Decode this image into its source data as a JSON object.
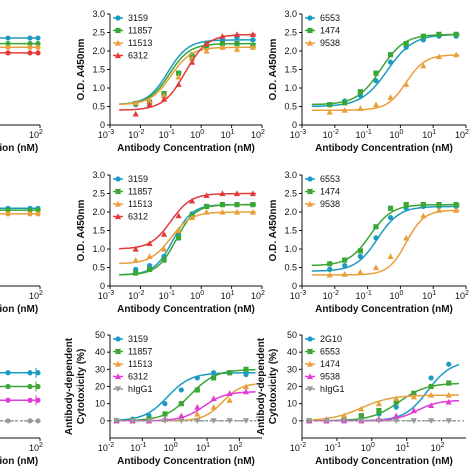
{
  "chart_data": [
    {
      "type": "scatter",
      "panel": "top-left (cropped)",
      "xlabel": "Antibody Concentration (nM)",
      "ylabel": "",
      "xscale": "log",
      "xlim": [
        0.001,
        100
      ],
      "ylim": [
        0,
        3.0
      ],
      "xtick_labels": [
        "10",
        "10"
      ],
      "xtick_exps": [
        "1",
        "2"
      ],
      "series": [
        {
          "name": "",
          "color": "#1b9bc0",
          "level": 2.35
        },
        {
          "name": "",
          "color": "#3aa635",
          "level": 2.2
        },
        {
          "name": "",
          "color": "#e8a03a",
          "level": 2.1
        },
        {
          "name": "",
          "color": "#e23b3b",
          "level": 1.95
        }
      ]
    },
    {
      "type": "line",
      "panel": "top-middle",
      "title": "",
      "xlabel": "Antibody Concentration (nM)",
      "ylabel": "O.D. A450nm",
      "xscale": "log",
      "xlim": [
        0.001,
        100
      ],
      "ylim": [
        0,
        3.0
      ],
      "yticks": [
        "0",
        "0.5",
        "1.0",
        "1.5",
        "2.0",
        "2.5",
        "3.0"
      ],
      "xtick_exps": [
        "-3",
        "-2",
        "-1",
        "0",
        "1",
        "2"
      ],
      "legend_position": "top-left",
      "series": [
        {
          "name": "3159",
          "color": "#1b9bc0",
          "marker": "circle",
          "bottom": 0.55,
          "top": 2.3,
          "ec50": 0.08,
          "hill": 1.3,
          "x": [
            0.007,
            0.02,
            0.06,
            0.18,
            0.5,
            1.5,
            5,
            15,
            50
          ],
          "y": [
            0.55,
            0.6,
            0.8,
            1.4,
            1.9,
            2.2,
            2.3,
            2.35,
            2.3
          ]
        },
        {
          "name": "11857",
          "color": "#3aa635",
          "marker": "square",
          "bottom": 0.55,
          "top": 2.2,
          "ec50": 0.09,
          "hill": 1.3,
          "x": [
            0.007,
            0.02,
            0.06,
            0.18,
            0.5,
            1.5,
            5,
            15,
            50
          ],
          "y": [
            0.58,
            0.62,
            0.85,
            1.4,
            1.85,
            2.1,
            2.2,
            2.2,
            2.15
          ]
        },
        {
          "name": "11513",
          "color": "#e8a03a",
          "marker": "triangle",
          "bottom": 0.55,
          "top": 2.1,
          "ec50": 0.1,
          "hill": 1.3,
          "x": [
            0.007,
            0.02,
            0.06,
            0.18,
            0.5,
            1.5,
            5,
            15,
            50
          ],
          "y": [
            0.6,
            0.65,
            0.8,
            1.3,
            1.8,
            2.0,
            2.1,
            2.05,
            2.1
          ]
        },
        {
          "name": "6312",
          "color": "#e23b3b",
          "marker": "triangle",
          "bottom": 0.4,
          "top": 2.45,
          "ec50": 0.3,
          "hill": 1.2,
          "x": [
            0.007,
            0.02,
            0.06,
            0.18,
            0.5,
            1.5,
            5,
            15,
            50
          ],
          "y": [
            0.3,
            0.55,
            0.7,
            1.1,
            1.7,
            2.2,
            2.4,
            2.45,
            2.45
          ]
        }
      ]
    },
    {
      "type": "line",
      "panel": "top-right",
      "xlabel": "Antibody Concentration (nM)",
      "ylabel": "O.D. A450nm",
      "xscale": "log",
      "xlim": [
        0.001,
        100
      ],
      "ylim": [
        0,
        3.0
      ],
      "yticks": [
        "0",
        "0.5",
        "1.0",
        "1.5",
        "2.0",
        "2.5",
        "3.0"
      ],
      "xtick_exps": [
        "-3",
        "-2",
        "-1",
        "0",
        "1",
        "2"
      ],
      "legend_position": "top-left",
      "series": [
        {
          "name": "6553",
          "color": "#1b9bc0",
          "marker": "circle",
          "bottom": 0.5,
          "top": 2.45,
          "ec50": 0.4,
          "hill": 1.1,
          "x": [
            0.007,
            0.02,
            0.06,
            0.18,
            0.5,
            1.5,
            5,
            15,
            50
          ],
          "y": [
            0.55,
            0.65,
            0.8,
            1.2,
            1.7,
            2.1,
            2.3,
            2.4,
            2.4
          ]
        },
        {
          "name": "1474",
          "color": "#3aa635",
          "marker": "square",
          "bottom": 0.55,
          "top": 2.45,
          "ec50": 0.25,
          "hill": 1.2,
          "x": [
            0.007,
            0.02,
            0.06,
            0.18,
            0.5,
            1.5,
            5,
            15,
            50
          ],
          "y": [
            0.55,
            0.6,
            0.9,
            1.4,
            1.9,
            2.2,
            2.4,
            2.45,
            2.45
          ]
        },
        {
          "name": "9538",
          "color": "#e8a03a",
          "marker": "triangle",
          "bottom": 0.4,
          "top": 1.9,
          "ec50": 1.5,
          "hill": 1.5,
          "x": [
            0.007,
            0.02,
            0.06,
            0.18,
            0.5,
            1.5,
            5,
            15,
            50
          ],
          "y": [
            0.35,
            0.4,
            0.45,
            0.55,
            0.75,
            1.1,
            1.6,
            1.85,
            1.9
          ]
        }
      ]
    },
    {
      "type": "scatter",
      "panel": "middle-left (cropped)",
      "xlabel": "Antibody Concentration (nM)",
      "xscale": "log",
      "xlim": [
        0.001,
        100
      ],
      "ylim": [
        0,
        3.0
      ],
      "xtick_labels": [
        "10",
        "10"
      ],
      "xtick_exps": [
        "1",
        "2"
      ],
      "series": [
        {
          "name": "",
          "color": "#1b9bc0",
          "level": 2.1
        },
        {
          "name": "",
          "color": "#3aa635",
          "level": 2.05
        },
        {
          "name": "",
          "color": "#e8a03a",
          "level": 1.95
        }
      ]
    },
    {
      "type": "line",
      "panel": "middle-middle",
      "xlabel": "Antibody Concentration (nM)",
      "ylabel": "O.D. A450nm",
      "xscale": "log",
      "xlim": [
        0.001,
        100
      ],
      "ylim": [
        0,
        3.0
      ],
      "yticks": [
        "0",
        "0.5",
        "1.0",
        "1.5",
        "2.0",
        "2.5",
        "3.0"
      ],
      "xtick_exps": [
        "-3",
        "-2",
        "-1",
        "0",
        "1",
        "2"
      ],
      "legend_position": "top-left",
      "series": [
        {
          "name": "3159",
          "color": "#1b9bc0",
          "marker": "circle",
          "bottom": 0.3,
          "top": 2.2,
          "ec50": 0.12,
          "hill": 1.4,
          "x": [
            0.007,
            0.02,
            0.06,
            0.18,
            0.5,
            1.5,
            5,
            15,
            50
          ],
          "y": [
            0.45,
            0.55,
            0.8,
            1.4,
            1.95,
            2.15,
            2.2,
            2.2,
            2.2
          ]
        },
        {
          "name": "11857",
          "color": "#3aa635",
          "marker": "square",
          "bottom": 0.3,
          "top": 2.2,
          "ec50": 0.15,
          "hill": 1.4,
          "x": [
            0.007,
            0.02,
            0.06,
            0.18,
            0.5,
            1.5,
            5,
            15,
            50
          ],
          "y": [
            0.35,
            0.45,
            0.7,
            1.3,
            1.9,
            2.15,
            2.2,
            2.2,
            2.2
          ]
        },
        {
          "name": "11513",
          "color": "#e8a03a",
          "marker": "triangle",
          "bottom": 0.6,
          "top": 2.0,
          "ec50": 0.1,
          "hill": 1.3,
          "x": [
            0.007,
            0.02,
            0.06,
            0.18,
            0.5,
            1.5,
            5,
            15,
            50
          ],
          "y": [
            0.7,
            0.8,
            1.0,
            1.5,
            1.85,
            2.0,
            2.0,
            2.0,
            2.0
          ]
        },
        {
          "name": "6312",
          "color": "#e23b3b",
          "marker": "triangle",
          "bottom": 1.0,
          "top": 2.5,
          "ec50": 0.1,
          "hill": 1.3,
          "x": [
            0.007,
            0.02,
            0.06,
            0.18,
            0.5,
            1.5,
            5,
            15,
            50
          ],
          "y": [
            1.0,
            1.15,
            1.4,
            1.9,
            2.3,
            2.45,
            2.5,
            2.5,
            2.5
          ]
        }
      ]
    },
    {
      "type": "line",
      "panel": "middle-right",
      "xlabel": "Antibody Concentration (nM)",
      "ylabel": "O.D. A450nm",
      "xscale": "log",
      "xlim": [
        0.001,
        100
      ],
      "ylim": [
        0,
        3.0
      ],
      "yticks": [
        "0",
        "0.5",
        "1.0",
        "1.5",
        "2.0",
        "2.5",
        "3.0"
      ],
      "xtick_exps": [
        "-3",
        "-2",
        "-1",
        "0",
        "1",
        "2"
      ],
      "legend_position": "top-left",
      "series": [
        {
          "name": "6553",
          "color": "#1b9bc0",
          "marker": "circle",
          "bottom": 0.4,
          "top": 2.15,
          "ec50": 0.2,
          "hill": 1.3,
          "x": [
            0.007,
            0.02,
            0.06,
            0.18,
            0.5,
            1.5,
            5,
            15,
            50
          ],
          "y": [
            0.45,
            0.55,
            0.8,
            1.3,
            1.85,
            2.1,
            2.15,
            2.15,
            2.15
          ]
        },
        {
          "name": "1474",
          "color": "#3aa635",
          "marker": "square",
          "bottom": 0.55,
          "top": 2.2,
          "ec50": 0.12,
          "hill": 1.3,
          "x": [
            0.007,
            0.02,
            0.06,
            0.18,
            0.5,
            1.5,
            5,
            15,
            50
          ],
          "y": [
            0.6,
            0.7,
            0.95,
            1.6,
            2.1,
            2.2,
            2.2,
            2.2,
            2.2
          ]
        },
        {
          "name": "9538",
          "color": "#e8a03a",
          "marker": "triangle",
          "bottom": 0.3,
          "top": 2.05,
          "ec50": 1.5,
          "hill": 1.6,
          "x": [
            0.007,
            0.02,
            0.06,
            0.18,
            0.5,
            1.5,
            5,
            15,
            50
          ],
          "y": [
            0.3,
            0.32,
            0.38,
            0.5,
            0.8,
            1.3,
            1.9,
            2.05,
            2.05
          ]
        }
      ]
    },
    {
      "type": "line",
      "panel": "bottom-left (cropped)",
      "xlabel": "Antibody Concentration (nM)",
      "xscale": "log",
      "xlim": [
        0.01,
        100
      ],
      "ylim": [
        -10,
        50
      ],
      "xtick_labels": [
        "10"
      ],
      "xtick_exps": [
        "2"
      ],
      "series": [
        {
          "name": "",
          "color": "#1b9bc0",
          "level": 28
        },
        {
          "name": "",
          "color": "#3aa635",
          "level": 20
        },
        {
          "name": "",
          "color": "#e23bd8",
          "level": 12
        },
        {
          "name": "",
          "color": "#999999",
          "level": 0
        }
      ]
    },
    {
      "type": "line",
      "panel": "bottom-middle",
      "xlabel": "Antibody Concentration (nM)",
      "ylabel": "Antibody-dependent Cytotoxicity (%)",
      "xscale": "log",
      "xlim": [
        0.01,
        500
      ],
      "ylim": [
        -10,
        50
      ],
      "yticks": [
        "0",
        "10",
        "20",
        "30",
        "40",
        "50"
      ],
      "xtick_exps": [
        "-2",
        "-1",
        "0",
        "1",
        "2"
      ],
      "legend_position": "top-left",
      "series": [
        {
          "name": "3159",
          "color": "#1b9bc0",
          "marker": "circle",
          "bottom": 0,
          "top": 28,
          "ec50": 0.6,
          "hill": 1.2,
          "x": [
            0.016,
            0.05,
            0.16,
            0.5,
            1.6,
            5,
            16,
            50,
            160
          ],
          "y": [
            0,
            1,
            3,
            10,
            18,
            25,
            28,
            28,
            27
          ]
        },
        {
          "name": "11857",
          "color": "#3aa635",
          "marker": "square",
          "bottom": 0,
          "top": 30,
          "ec50": 3,
          "hill": 1.1,
          "x": [
            0.016,
            0.05,
            0.16,
            0.5,
            1.6,
            5,
            16,
            50,
            160
          ],
          "y": [
            0,
            0,
            1,
            4,
            10,
            18,
            25,
            28,
            30
          ]
        },
        {
          "name": "11513",
          "color": "#e8a03a",
          "marker": "triangle",
          "bottom": 0,
          "top": 22,
          "ec50": 30,
          "hill": 1.5,
          "x": [
            0.016,
            0.05,
            0.16,
            0.5,
            1.6,
            5,
            16,
            50,
            160
          ],
          "y": [
            0,
            0,
            0,
            1,
            2,
            4,
            8,
            12,
            20
          ]
        },
        {
          "name": "6312",
          "color": "#e23bd8",
          "marker": "triangle",
          "bottom": 0,
          "top": 17,
          "ec50": 8,
          "hill": 1.3,
          "x": [
            0.016,
            0.05,
            0.16,
            0.5,
            1.6,
            5,
            16,
            50,
            160
          ],
          "y": [
            0,
            0,
            0,
            1,
            3,
            8,
            13,
            16,
            17
          ]
        },
        {
          "name": "hIgG1",
          "color": "#999999",
          "marker": "triangle-down",
          "bottom": 0,
          "top": 0,
          "ec50": 1,
          "hill": 1,
          "dashed": true,
          "x": [
            0.016,
            0.05,
            0.16,
            0.5,
            1.6,
            5,
            16,
            50,
            160
          ],
          "y": [
            0,
            0,
            0,
            0,
            0,
            0,
            0,
            0,
            0
          ]
        }
      ]
    },
    {
      "type": "line",
      "panel": "bottom-right",
      "xlabel": "Antibody Concentration (nM)",
      "ylabel": "Antibody-dependent Cytotoxicity (%)",
      "xscale": "log",
      "xlim": [
        0.01,
        500
      ],
      "ylim": [
        -10,
        50
      ],
      "yticks": [
        "0",
        "10",
        "20",
        "30",
        "40",
        "50"
      ],
      "xtick_exps": [
        "-2",
        "-1",
        "0",
        "1",
        "2"
      ],
      "legend_position": "top-left",
      "series": [
        {
          "name": "2G10",
          "color": "#1b9bc0",
          "marker": "circle",
          "bottom": 0,
          "top": 35,
          "ec50": 40,
          "hill": 1.3,
          "x": [
            0.016,
            0.05,
            0.16,
            0.5,
            1.6,
            5,
            16,
            50,
            160
          ],
          "y": [
            0,
            0,
            1,
            2,
            4,
            8,
            15,
            25,
            33
          ]
        },
        {
          "name": "6553",
          "color": "#3aa635",
          "marker": "square",
          "bottom": 0,
          "top": 22,
          "ec50": 6,
          "hill": 1.1,
          "x": [
            0.016,
            0.05,
            0.16,
            0.5,
            1.6,
            5,
            16,
            50,
            160
          ],
          "y": [
            0,
            0,
            1,
            3,
            6,
            11,
            16,
            20,
            22
          ]
        },
        {
          "name": "1474",
          "color": "#e8a03a",
          "marker": "triangle",
          "bottom": 0,
          "top": 15,
          "ec50": 0.5,
          "hill": 1.0,
          "x": [
            0.016,
            0.05,
            0.16,
            0.5,
            1.6,
            5,
            16,
            50,
            160
          ],
          "y": [
            0,
            1,
            3,
            7,
            10,
            13,
            14,
            15,
            15
          ]
        },
        {
          "name": "9538",
          "color": "#e23bd8",
          "marker": "triangle",
          "bottom": 0,
          "top": 12,
          "ec50": 20,
          "hill": 1.4,
          "x": [
            0.016,
            0.05,
            0.16,
            0.5,
            1.6,
            5,
            16,
            50,
            160
          ],
          "y": [
            0,
            0,
            0,
            0,
            1,
            3,
            6,
            9,
            11
          ]
        },
        {
          "name": "hIgG1",
          "color": "#999999",
          "marker": "triangle-down",
          "bottom": 0,
          "top": 0,
          "ec50": 1,
          "hill": 1,
          "dashed": true,
          "x": [
            0.016,
            0.05,
            0.16,
            0.5,
            1.6,
            5,
            16,
            50,
            160
          ],
          "y": [
            0,
            0,
            0,
            0,
            0,
            0,
            0,
            0,
            0
          ]
        }
      ]
    }
  ]
}
